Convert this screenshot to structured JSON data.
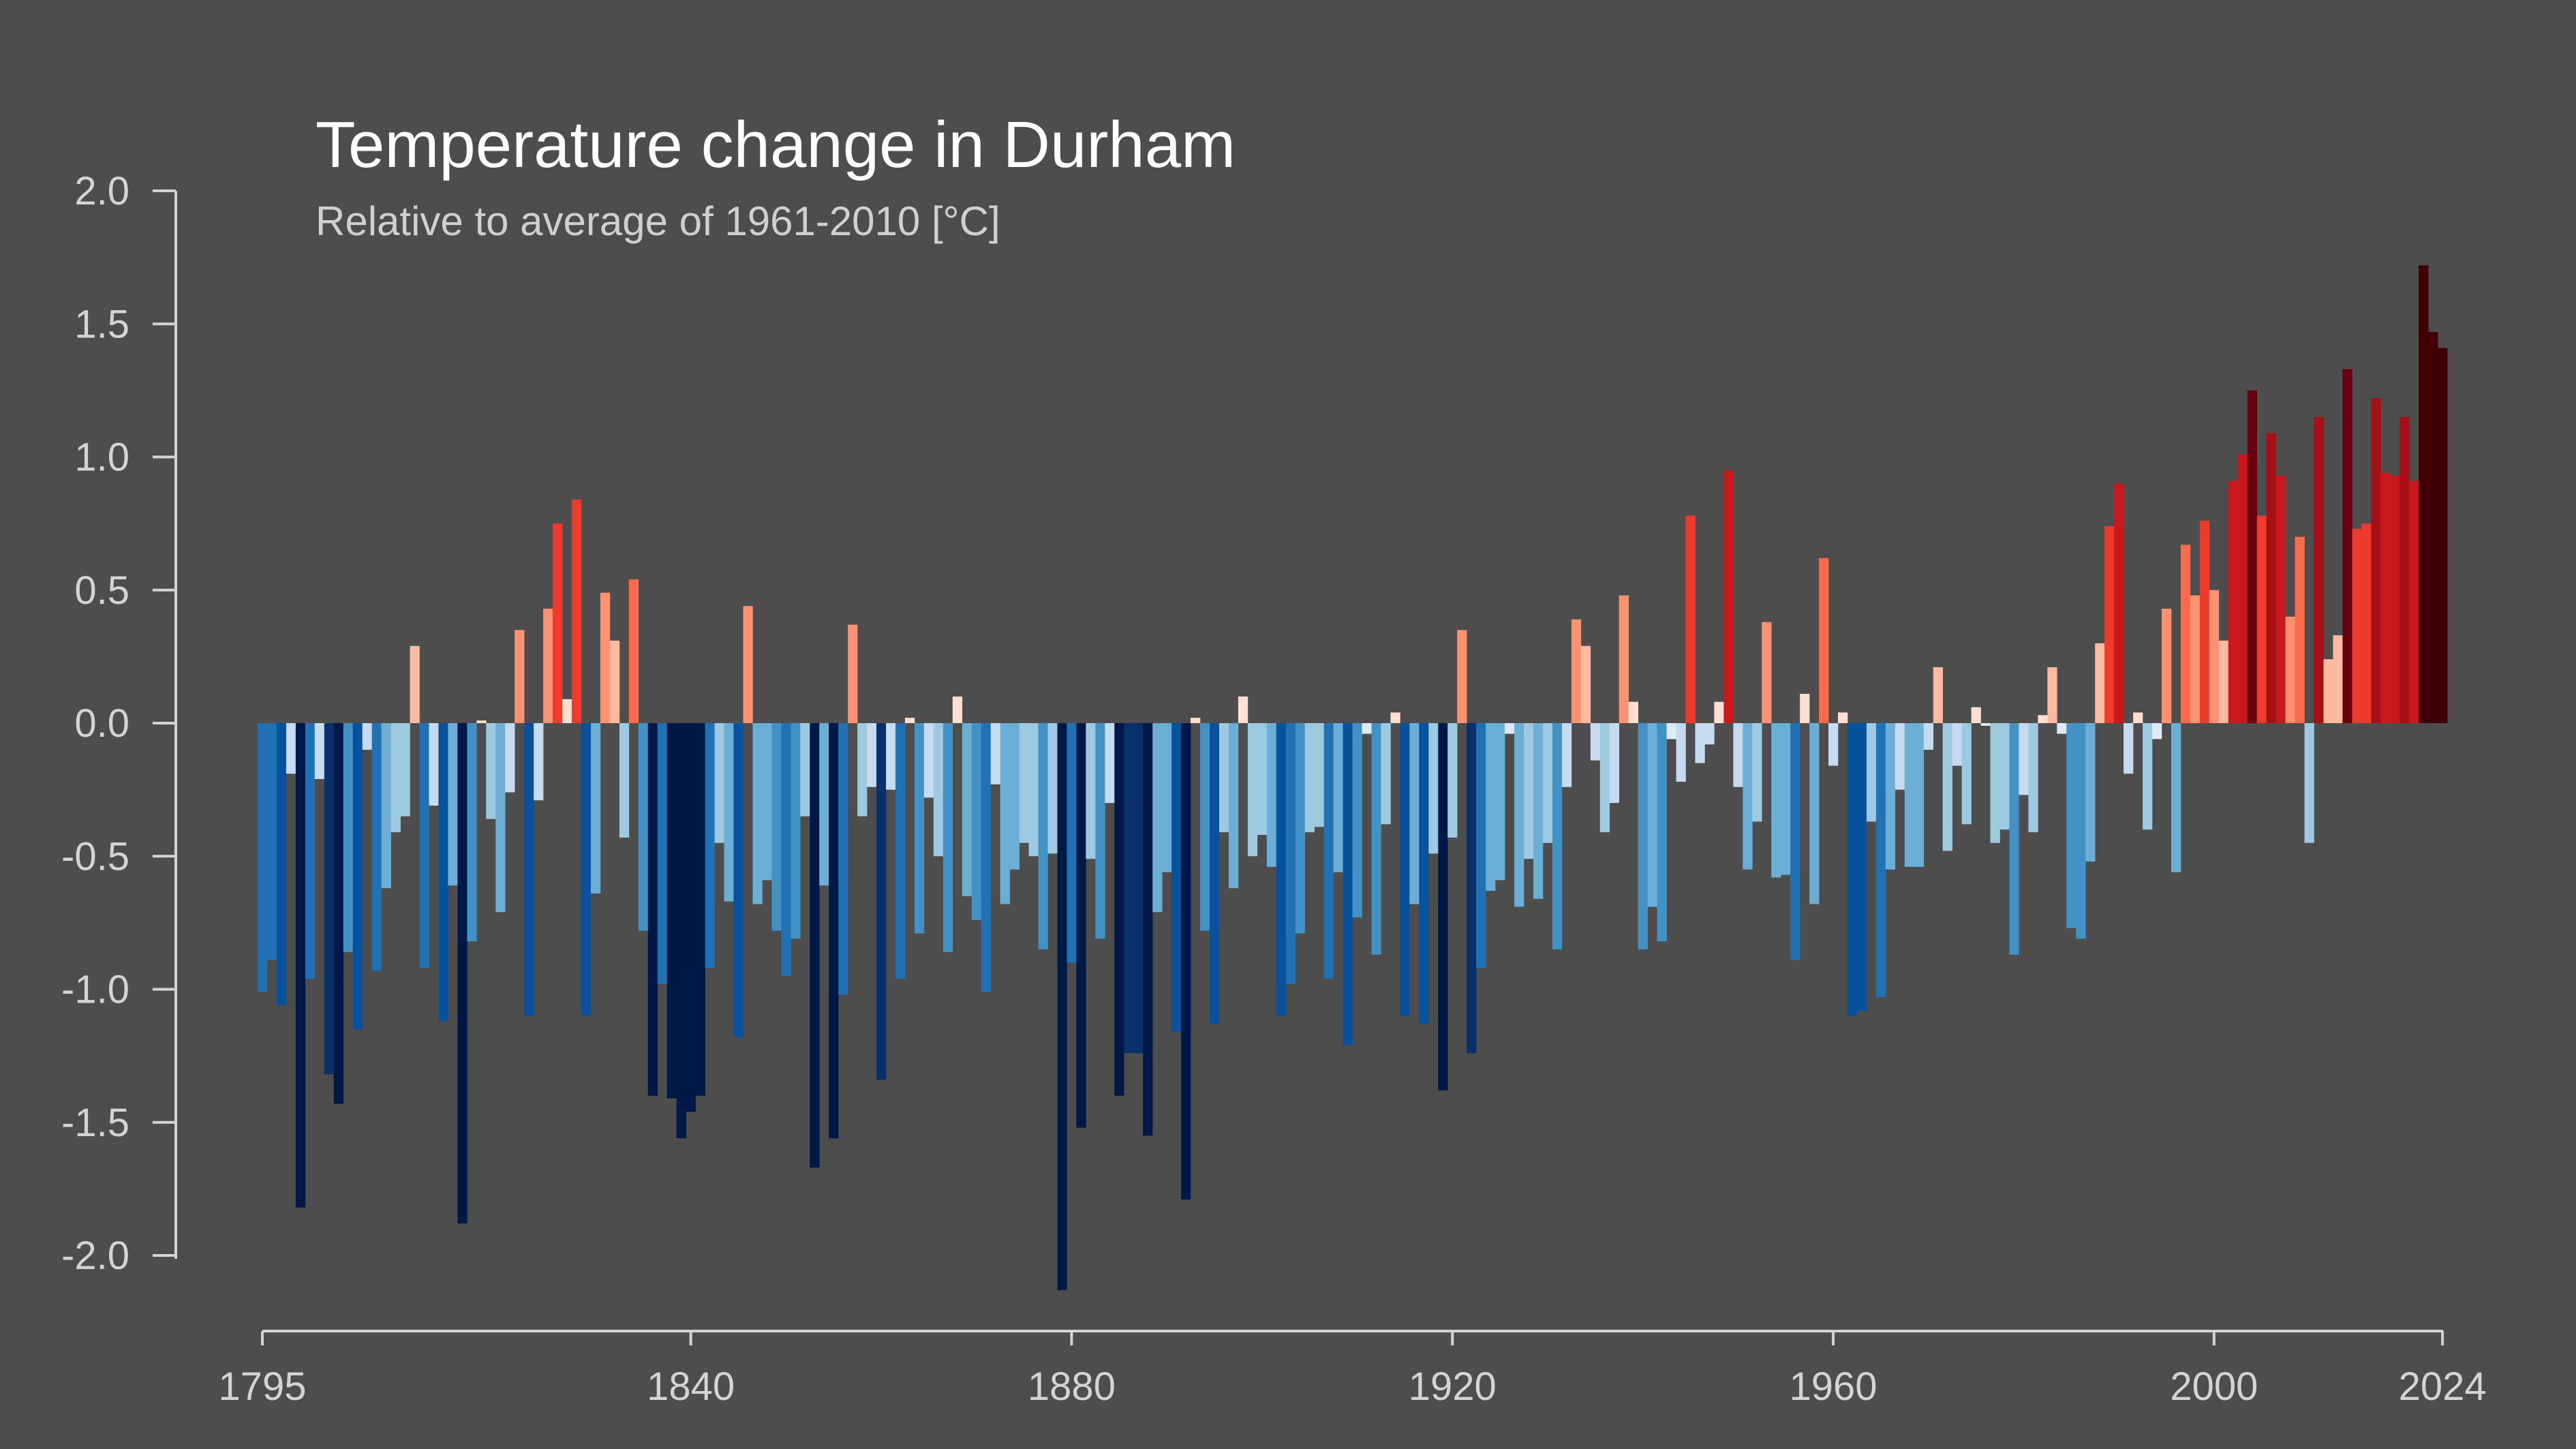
{
  "chart_data": {
    "type": "bar",
    "title": "Temperature change in Durham",
    "subtitle": "Relative to average of 1961-2010  [°C]",
    "xlabel": "",
    "ylabel": "",
    "x_start": 1795,
    "x_end": 2024,
    "ylim": [
      -2.0,
      2.0
    ],
    "yticks": [
      "2.0",
      "1.5",
      "1.0",
      "0.5",
      "0.0",
      "-0.5",
      "-1.0",
      "-1.5",
      "-2.0"
    ],
    "ytick_values": [
      2.0,
      1.5,
      1.0,
      0.5,
      0.0,
      -0.5,
      -1.0,
      -1.5,
      -2.0
    ],
    "xticks": [
      "1795",
      "1840",
      "1880",
      "1920",
      "1960",
      "2000",
      "2024"
    ],
    "xtick_values": [
      1795,
      1840,
      1880,
      1920,
      1960,
      2000,
      2024
    ],
    "grid": false,
    "legend": "none",
    "values": [
      -1.01,
      -0.89,
      -1.06,
      -0.19,
      -1.82,
      -0.96,
      -0.21,
      -1.32,
      -1.43,
      -0.86,
      -1.15,
      -0.1,
      -0.93,
      -0.62,
      -0.41,
      -0.35,
      0.29,
      -0.92,
      -0.31,
      -1.12,
      -0.61,
      -1.88,
      -0.82,
      0.01,
      -0.36,
      -0.71,
      -0.26,
      0.35,
      -1.1,
      -0.29,
      0.43,
      0.75,
      0.09,
      0.84,
      -1.1,
      -0.64,
      0.49,
      0.31,
      -0.43,
      0.54,
      -0.78,
      -1.4,
      -0.98,
      -1.41,
      -1.56,
      -1.46,
      -1.4,
      -0.92,
      -0.45,
      -0.67,
      -1.18,
      0.44,
      -0.68,
      -0.59,
      -0.78,
      -0.95,
      -0.81,
      -0.35,
      -1.67,
      -0.61,
      -1.56,
      -1.02,
      0.37,
      -0.35,
      -0.24,
      -1.34,
      -0.25,
      -0.96,
      0.02,
      -0.79,
      -0.28,
      -0.5,
      -0.86,
      0.1,
      -0.65,
      -0.74,
      -1.01,
      -0.23,
      -0.68,
      -0.55,
      -0.45,
      -0.5,
      -0.85,
      -0.49,
      -2.13,
      -0.9,
      -1.52,
      -0.51,
      -0.81,
      -0.3,
      -1.4,
      -1.24,
      -1.24,
      -1.55,
      -0.71,
      -0.56,
      -1.16,
      -1.79,
      0.02,
      -0.78,
      -1.13,
      -0.41,
      -0.62,
      0.1,
      -0.5,
      -0.42,
      -0.54,
      -1.1,
      -0.98,
      -0.79,
      -0.41,
      -0.39,
      -0.96,
      -0.56,
      -1.21,
      -0.73,
      -0.04,
      -0.87,
      -0.38,
      0.04,
      -1.1,
      -0.68,
      -1.13,
      -0.49,
      -1.38,
      -0.43,
      0.35,
      -1.24,
      -0.92,
      -0.63,
      -0.59,
      -0.04,
      -0.69,
      -0.51,
      -0.66,
      -0.45,
      -0.85,
      -0.24,
      0.39,
      0.29,
      -0.14,
      -0.41,
      -0.3,
      0.48,
      0.08,
      -0.85,
      -0.69,
      -0.82,
      -0.06,
      -0.22,
      0.78,
      -0.15,
      -0.08,
      0.08,
      0.95,
      -0.24,
      -0.55,
      -0.37,
      0.38,
      -0.58,
      -0.57,
      -0.89,
      0.11,
      -0.68,
      0.62,
      -0.16,
      0.04,
      -1.1,
      -1.08,
      -0.37,
      -1.03,
      -0.55,
      -0.25,
      -0.54,
      -0.54,
      -0.1,
      0.21,
      -0.48,
      -0.16,
      -0.38,
      0.06,
      -0.01,
      -0.45,
      -0.4,
      -0.87,
      -0.27,
      -0.41,
      0.03,
      0.21,
      -0.04,
      -0.77,
      -0.81,
      -0.52,
      0.3,
      0.74,
      0.9,
      -0.19,
      0.04,
      -0.4,
      -0.06,
      0.43,
      -0.56,
      0.67,
      0.48,
      0.76,
      0.5,
      0.31,
      0.91,
      1.01,
      1.25,
      0.78,
      1.09,
      0.93,
      0.4,
      0.7,
      -0.45,
      1.15,
      0.24,
      0.33,
      1.33,
      0.73,
      0.75,
      1.22,
      0.94,
      0.93,
      1.15,
      0.91,
      1.72,
      1.47,
      1.41
    ],
    "colors": {
      "background": "#4d4d4d",
      "axis": "#d4d4d4",
      "negative_thresholds": [
        -0.07,
        -0.33,
        -0.52,
        -0.73,
        -0.88,
        -1.04,
        -1.22,
        -1.37
      ],
      "negative_palette": [
        "#deebf7",
        "#c6dbef",
        "#9ecae1",
        "#6baed6",
        "#4292c6",
        "#2171b5",
        "#08519c",
        "#08306b",
        "#001845"
      ],
      "positive_thresholds": [
        0.12,
        0.34,
        0.51,
        0.71,
        0.88,
        1.05,
        1.24,
        1.4
      ],
      "positive_palette": [
        "#fee0d2",
        "#fcbba1",
        "#fc9272",
        "#fb6a4a",
        "#ef3b2c",
        "#cb181d",
        "#a50f15",
        "#67000d",
        "#410005"
      ]
    }
  }
}
